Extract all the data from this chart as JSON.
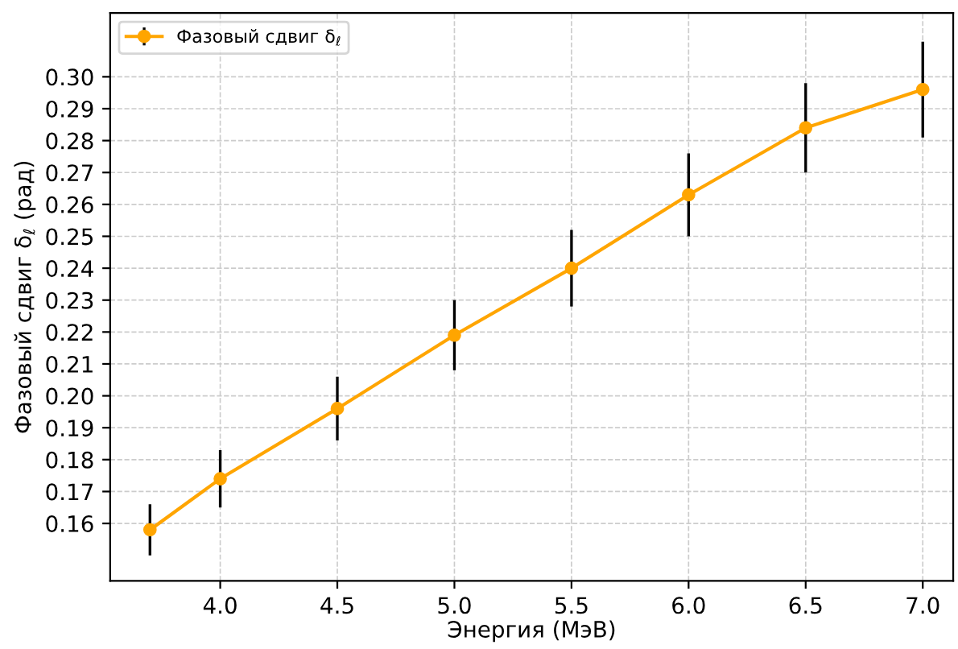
{
  "chart_data": {
    "type": "line",
    "xlabel": "Энергия (МэВ)",
    "ylabel": "Фазовый сдвиг δ$_{ℓ}$ (рад)",
    "x": [
      3.7,
      4.0,
      4.5,
      5.0,
      5.5,
      6.0,
      6.5,
      7.0
    ],
    "series": [
      {
        "name": "Фазовый сдвиг δ$_{ℓ}$",
        "color": "#ffa500",
        "values": [
          0.158,
          0.174,
          0.196,
          0.219,
          0.24,
          0.263,
          0.284,
          0.296
        ],
        "errors": [
          0.008,
          0.009,
          0.01,
          0.011,
          0.012,
          0.013,
          0.014,
          0.015
        ]
      }
    ],
    "xlim": [
      3.53,
      7.13
    ],
    "ylim": [
      0.142,
      0.32
    ],
    "xticks": [
      {
        "value": 4.0,
        "label": "4.0"
      },
      {
        "value": 4.5,
        "label": "4.5"
      },
      {
        "value": 5.0,
        "label": "5.0"
      },
      {
        "value": 5.5,
        "label": "5.5"
      },
      {
        "value": 6.0,
        "label": "6.0"
      },
      {
        "value": 6.5,
        "label": "6.5"
      },
      {
        "value": 7.0,
        "label": "7.0"
      }
    ],
    "yticks": [
      {
        "value": 0.16,
        "label": "0.16"
      },
      {
        "value": 0.17,
        "label": "0.17"
      },
      {
        "value": 0.18,
        "label": "0.18"
      },
      {
        "value": 0.19,
        "label": "0.19"
      },
      {
        "value": 0.2,
        "label": "0.20"
      },
      {
        "value": 0.21,
        "label": "0.21"
      },
      {
        "value": 0.22,
        "label": "0.22"
      },
      {
        "value": 0.23,
        "label": "0.23"
      },
      {
        "value": 0.24,
        "label": "0.24"
      },
      {
        "value": 0.25,
        "label": "0.25"
      },
      {
        "value": 0.26,
        "label": "0.26"
      },
      {
        "value": 0.27,
        "label": "0.27"
      },
      {
        "value": 0.28,
        "label": "0.28"
      },
      {
        "value": 0.29,
        "label": "0.29"
      },
      {
        "value": 0.3,
        "label": "0.30"
      }
    ],
    "grid": true,
    "legend": "top left",
    "marker": "circle",
    "line_style": "solid"
  }
}
